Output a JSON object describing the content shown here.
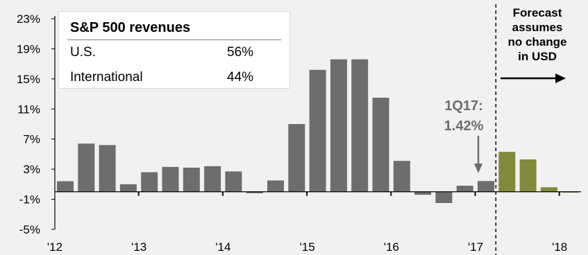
{
  "chart_data": {
    "type": "bar",
    "categories": [
      "1Q12",
      "2Q12",
      "3Q12",
      "4Q12",
      "1Q13",
      "2Q13",
      "3Q13",
      "4Q13",
      "1Q14",
      "2Q14",
      "3Q14",
      "4Q14",
      "1Q15",
      "2Q15",
      "3Q15",
      "4Q15",
      "1Q16",
      "2Q16",
      "3Q16",
      "4Q16",
      "1Q17",
      "2Q17",
      "3Q17",
      "4Q17",
      "1Q18"
    ],
    "values": [
      1.4,
      6.4,
      6.2,
      1.0,
      2.6,
      3.3,
      3.2,
      3.4,
      2.7,
      -0.2,
      1.5,
      9.0,
      16.2,
      17.6,
      17.6,
      12.5,
      4.1,
      -0.4,
      -1.5,
      0.8,
      1.42,
      5.3,
      4.3,
      0.6,
      -0.1
    ],
    "forecast_from_index": 21,
    "colors": {
      "actual": "#6d6d6d",
      "forecast": "#808a3a",
      "background": "#f1f1f1"
    },
    "ylim": [
      -5,
      23
    ],
    "yticks": [
      "23%",
      "19%",
      "15%",
      "11%",
      "7%",
      "3%",
      "-1%",
      "-5%"
    ],
    "ytick_values": [
      23,
      19,
      15,
      11,
      7,
      3,
      -1,
      -5
    ],
    "xticks": [
      "'12",
      "'13",
      "'14",
      "'15",
      "'16",
      "'17",
      "'18"
    ],
    "xtick_category_index": [
      0,
      4,
      8,
      12,
      16,
      20,
      24
    ],
    "grid": false,
    "annotations": {
      "last_actual": [
        "1Q17:",
        "1.42%"
      ],
      "forecast_note": [
        "Forecast",
        "assumes",
        "no change",
        "in USD"
      ]
    },
    "table": {
      "title": "S&P 500 revenues",
      "rows": [
        {
          "label": "U.S.",
          "value": "56%"
        },
        {
          "label": "International",
          "value": "44%"
        }
      ]
    }
  }
}
